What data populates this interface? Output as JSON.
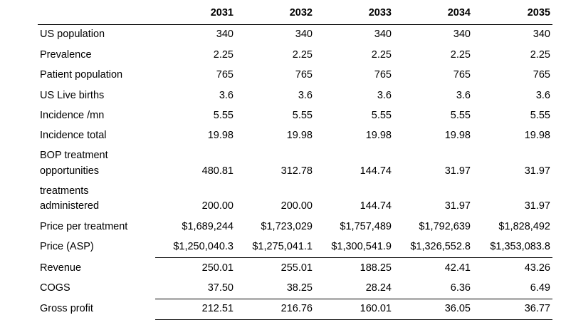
{
  "columns": [
    "2031",
    "2032",
    "2033",
    "2034",
    "2035"
  ],
  "rows": [
    {
      "label": [
        "US population"
      ],
      "values": [
        "340",
        "340",
        "340",
        "340",
        "340"
      ]
    },
    {
      "label": [
        "Prevalence"
      ],
      "values": [
        "2.25",
        "2.25",
        "2.25",
        "2.25",
        "2.25"
      ]
    },
    {
      "label": [
        "Patient population"
      ],
      "values": [
        "765",
        "765",
        "765",
        "765",
        "765"
      ]
    },
    {
      "label": [
        "US Live births"
      ],
      "values": [
        "3.6",
        "3.6",
        "3.6",
        "3.6",
        "3.6"
      ]
    },
    {
      "label": [
        "Incidence /mn"
      ],
      "values": [
        "5.55",
        "5.55",
        "5.55",
        "5.55",
        "5.55"
      ]
    },
    {
      "label": [
        "Incidence total"
      ],
      "values": [
        "19.98",
        "19.98",
        "19.98",
        "19.98",
        "19.98"
      ]
    },
    {
      "label": [
        "BOP treatment",
        "opportunities"
      ],
      "values": [
        "480.81",
        "312.78",
        "144.74",
        "31.97",
        "31.97"
      ]
    },
    {
      "label": [
        "treatments",
        "administered"
      ],
      "values": [
        "200.00",
        "200.00",
        "144.74",
        "31.97",
        "31.97"
      ]
    },
    {
      "label": [
        "Price per treatment"
      ],
      "values": [
        "$1,689,244",
        "$1,723,029",
        "$1,757,489",
        "$1,792,639",
        "$1,828,492"
      ]
    },
    {
      "label": [
        "Price (ASP)"
      ],
      "values": [
        "$1,250,040.3",
        "$1,275,041.1",
        "$1,300,541.9",
        "$1,326,552.8",
        "$1,353,083.8"
      ]
    },
    {
      "label": [
        "Revenue"
      ],
      "values": [
        "250.01",
        "255.01",
        "188.25",
        "42.41",
        "43.26"
      ]
    },
    {
      "label": [
        "COGS"
      ],
      "values": [
        "37.50",
        "38.25",
        "28.24",
        "6.36",
        "6.49"
      ]
    },
    {
      "label": [
        "Gross profit"
      ],
      "values": [
        "212.51",
        "216.76",
        "160.01",
        "36.05",
        "36.77"
      ]
    }
  ]
}
